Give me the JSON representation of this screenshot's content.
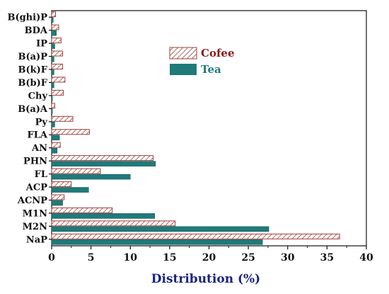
{
  "chart_data": {
    "type": "bar",
    "orientation": "horizontal",
    "categories": [
      "NaP",
      "M2N",
      "M1N",
      "ACNP",
      "ACP",
      "FL",
      "PHN",
      "AN",
      "FLA",
      "Py",
      "B(a)A",
      "Chy",
      "B(b)F",
      "B(k)F",
      "B(a)P",
      "IP",
      "BDA",
      "B(ghi)P"
    ],
    "series": [
      {
        "name": "Cofee",
        "color": "#a0403a",
        "values": [
          36.6,
          15.7,
          7.7,
          1.6,
          2.5,
          6.2,
          12.9,
          1.1,
          4.8,
          2.7,
          0.4,
          1.5,
          1.7,
          1.4,
          1.4,
          1.2,
          0.9,
          0.5
        ]
      },
      {
        "name": "Tea",
        "color": "#1f7a7a",
        "values": [
          26.8,
          27.6,
          13.1,
          1.4,
          4.7,
          10.0,
          13.2,
          0.7,
          1.0,
          0.4,
          0.1,
          0.1,
          0.3,
          0.3,
          0.3,
          0.4,
          0.6,
          0.2
        ]
      }
    ],
    "xlabel": "Distribution (%)",
    "ylabel": "",
    "xlim": [
      0,
      40
    ],
    "xticks": [
      "0",
      "5",
      "10",
      "15",
      "20",
      "25",
      "30",
      "35",
      "40"
    ],
    "grid": false,
    "legend_position": "top-right"
  },
  "colors": {
    "xlabel": "#1a237e",
    "cofee_text": "#8b1a1a",
    "tea_text": "#1f7a7a"
  }
}
